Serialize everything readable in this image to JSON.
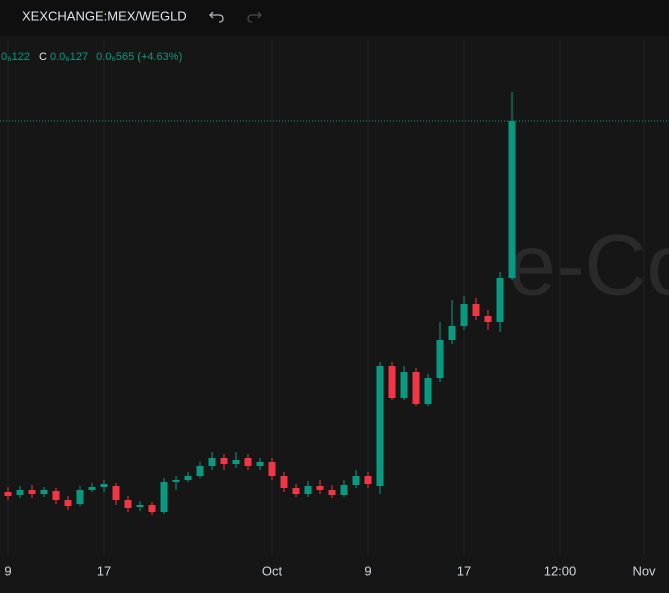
{
  "header": {
    "symbol": "XEXCHANGE:MEX/WEGLD"
  },
  "legend": {
    "open": "0₆122",
    "close_key": "C",
    "close": "0.0₆127",
    "change": "0.0₆565 (+4.63%)"
  },
  "watermark": "e-Co",
  "chart_data": {
    "type": "candlestick",
    "categories": [
      "9",
      null,
      null,
      null,
      null,
      null,
      null,
      null,
      "17",
      null,
      null,
      null,
      null,
      null,
      null,
      null,
      null,
      null,
      null,
      null,
      null,
      null,
      "Oct",
      null,
      null,
      null,
      null,
      null,
      null,
      null,
      "9",
      null,
      null,
      null,
      null,
      null,
      null,
      null,
      "17",
      null,
      null,
      null,
      null,
      null,
      null,
      null,
      "12:00",
      null,
      null,
      null,
      null,
      null,
      null,
      "Nov"
    ],
    "values": [
      [
        89.9,
        90.4,
        89.1,
        89.5
      ],
      [
        89.6,
        90.5,
        89.3,
        90.1
      ],
      [
        90.1,
        90.6,
        89.3,
        89.7
      ],
      [
        89.7,
        90.4,
        89.4,
        90.1
      ],
      [
        90.0,
        90.3,
        88.7,
        89.1
      ],
      [
        89.1,
        89.5,
        88.1,
        88.5
      ],
      [
        88.7,
        90.5,
        88.5,
        90.1
      ],
      [
        90.1,
        90.8,
        89.9,
        90.4
      ],
      [
        90.4,
        91.1,
        89.9,
        90.7
      ],
      [
        90.5,
        90.8,
        88.6,
        89.1
      ],
      [
        89.1,
        89.5,
        87.9,
        88.3
      ],
      [
        88.4,
        89.0,
        88.0,
        88.6
      ],
      [
        88.6,
        88.9,
        87.6,
        87.9
      ],
      [
        87.9,
        91.3,
        87.7,
        90.9
      ],
      [
        90.9,
        91.5,
        90.1,
        91.1
      ],
      [
        91.1,
        91.9,
        90.9,
        91.5
      ],
      [
        91.5,
        92.9,
        91.3,
        92.5
      ],
      [
        92.5,
        93.9,
        92.1,
        93.3
      ],
      [
        93.3,
        93.7,
        92.1,
        92.7
      ],
      [
        92.7,
        93.9,
        92.3,
        93.1
      ],
      [
        93.3,
        93.7,
        92.1,
        92.5
      ],
      [
        92.5,
        93.3,
        92.1,
        92.9
      ],
      [
        92.9,
        93.3,
        91.1,
        91.5
      ],
      [
        91.5,
        91.9,
        89.9,
        90.3
      ],
      [
        90.3,
        90.7,
        89.4,
        89.7
      ],
      [
        89.7,
        91.0,
        89.4,
        90.5
      ],
      [
        90.5,
        91.1,
        89.7,
        90.1
      ],
      [
        90.1,
        90.6,
        89.3,
        89.6
      ],
      [
        89.6,
        91.1,
        89.4,
        90.6
      ],
      [
        90.6,
        92.1,
        90.3,
        91.5
      ],
      [
        91.5,
        91.9,
        90.3,
        90.7
      ],
      [
        90.5,
        102.9,
        89.7,
        102.5
      ],
      [
        102.5,
        102.9,
        99.1,
        99.3
      ],
      [
        99.3,
        102.5,
        99.1,
        101.9
      ],
      [
        101.9,
        102.3,
        98.5,
        98.7
      ],
      [
        98.7,
        101.7,
        98.5,
        101.3
      ],
      [
        101.3,
        106.9,
        100.9,
        105.1
      ],
      [
        105.1,
        109.1,
        104.7,
        106.5
      ],
      [
        106.5,
        109.5,
        106.1,
        108.7
      ],
      [
        108.7,
        109.3,
        107.1,
        107.5
      ],
      [
        107.5,
        108.1,
        106.1,
        106.9
      ],
      [
        106.9,
        111.9,
        105.9,
        111.3
      ],
      [
        111.3,
        129.9,
        111.1,
        127.0
      ],
      null,
      null,
      null,
      null,
      null,
      null,
      null,
      null,
      null,
      null,
      null
    ],
    "ylim": [
      83.6,
      135.1
    ],
    "up_color": "#089981",
    "down_color": "#f23645",
    "grid": true
  }
}
